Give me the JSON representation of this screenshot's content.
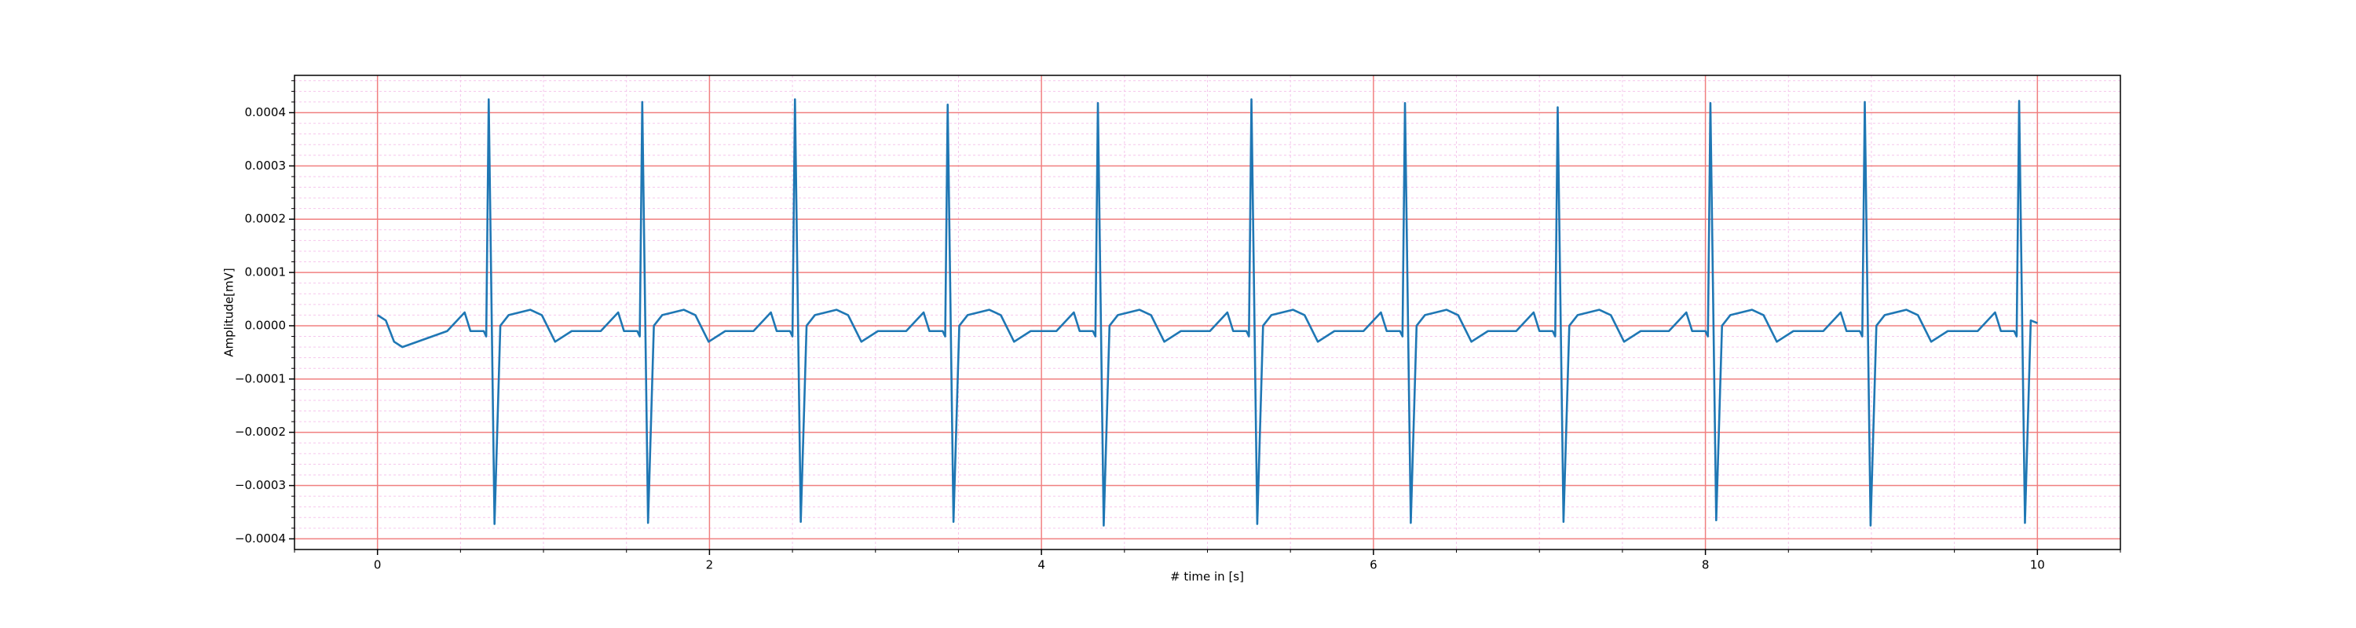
{
  "chart_data": {
    "type": "line",
    "xlabel": "# time in [s]",
    "ylabel": "Amplitude[mV]",
    "color": "#1f77b4",
    "grid": true,
    "xlim": [
      -0.5,
      10.5
    ],
    "ylim": [
      -0.00042,
      0.00047
    ],
    "xticks": [
      0,
      2,
      4,
      6,
      8,
      10
    ],
    "yticks": [
      {
        "value": -0.0004,
        "label": "−0.0004"
      },
      {
        "value": -0.0003,
        "label": "−0.0003"
      },
      {
        "value": -0.0002,
        "label": "−0.0002"
      },
      {
        "value": -0.0001,
        "label": "−0.0001"
      },
      {
        "value": 0,
        "label": "0.0000"
      },
      {
        "value": 0.0001,
        "label": "0.0001"
      },
      {
        "value": 0.0002,
        "label": "0.0002"
      },
      {
        "value": 0.0003,
        "label": "0.0003"
      },
      {
        "value": 0.0004,
        "label": "0.0004"
      }
    ],
    "xminorticks": [
      -0.5,
      0.5,
      1,
      1.5,
      2.5,
      3,
      3.5,
      4.5,
      5,
      5.5,
      6.5,
      7,
      7.5,
      8.5,
      9,
      9.5,
      10.5
    ],
    "yminorticks": [
      -0.00038,
      -0.00036,
      -0.00034,
      -0.00032,
      -0.00028,
      -0.00026,
      -0.00024,
      -0.00022,
      -0.00018,
      -0.00016,
      -0.00014,
      -0.00012,
      -8e-05,
      -6e-05,
      -4e-05,
      -2e-05,
      2e-05,
      4e-05,
      6e-05,
      8e-05,
      0.00012,
      0.00014,
      0.00016,
      0.00018,
      0.00022,
      0.00024,
      0.00026,
      0.00028,
      0.00032,
      0.00034,
      0.00036,
      0.00038,
      0.00042,
      0.00044,
      0.00046
    ],
    "x": [
      0,
      0.05,
      0.1,
      0.15,
      0.42,
      0.525,
      0.56,
      0.64,
      0.655,
      0.67,
      0.705,
      0.74,
      0.79,
      0.92,
      0.99,
      1.07,
      1.17,
      1.345,
      1.45,
      1.485,
      1.565,
      1.58,
      1.595,
      1.63,
      1.665,
      1.715,
      1.845,
      1.915,
      1.995,
      2.095,
      2.265,
      2.37,
      2.405,
      2.485,
      2.5,
      2.515,
      2.55,
      2.585,
      2.635,
      2.765,
      2.835,
      2.915,
      3.015,
      3.185,
      3.29,
      3.325,
      3.405,
      3.42,
      3.435,
      3.47,
      3.505,
      3.555,
      3.685,
      3.755,
      3.835,
      3.935,
      4.09,
      4.195,
      4.23,
      4.31,
      4.325,
      4.34,
      4.375,
      4.41,
      4.46,
      4.59,
      4.66,
      4.74,
      4.84,
      5.015,
      5.12,
      5.155,
      5.235,
      5.25,
      5.265,
      5.3,
      5.335,
      5.385,
      5.515,
      5.585,
      5.665,
      5.765,
      5.94,
      6.045,
      6.08,
      6.16,
      6.175,
      6.19,
      6.225,
      6.26,
      6.31,
      6.44,
      6.51,
      6.59,
      6.69,
      6.86,
      6.965,
      7.0,
      7.08,
      7.095,
      7.11,
      7.145,
      7.18,
      7.23,
      7.36,
      7.43,
      7.51,
      7.61,
      7.78,
      7.885,
      7.92,
      8.0,
      8.015,
      8.03,
      8.065,
      8.1,
      8.15,
      8.28,
      8.35,
      8.43,
      8.53,
      8.71,
      8.815,
      8.85,
      8.93,
      8.945,
      8.96,
      8.995,
      9.03,
      9.08,
      9.21,
      9.28,
      9.36,
      9.46,
      9.64,
      9.745,
      9.78,
      9.86,
      9.875,
      9.89,
      9.925,
      9.96,
      10.0
    ],
    "values": [
      2e-05,
      1e-05,
      -3e-05,
      -4e-05,
      -1e-05,
      2.5e-05,
      -1e-05,
      -1e-05,
      -2e-05,
      0.000425,
      -0.000372,
      0,
      2e-05,
      3e-05,
      2e-05,
      -3e-05,
      -1e-05,
      -1e-05,
      2.5e-05,
      -1e-05,
      -1e-05,
      -2e-05,
      0.00042,
      -0.00037,
      0,
      2e-05,
      3e-05,
      2e-05,
      -3e-05,
      -1e-05,
      -1e-05,
      2.5e-05,
      -1e-05,
      -1e-05,
      -2e-05,
      0.000425,
      -0.000368,
      0,
      2e-05,
      3e-05,
      2e-05,
      -3e-05,
      -1e-05,
      -1e-05,
      2.5e-05,
      -1e-05,
      -1e-05,
      -2e-05,
      0.000415,
      -0.000368,
      0,
      2e-05,
      3e-05,
      2e-05,
      -3e-05,
      -1e-05,
      -1e-05,
      2.5e-05,
      -1e-05,
      -1e-05,
      -2e-05,
      0.000418,
      -0.000375,
      0,
      2e-05,
      3e-05,
      2e-05,
      -3e-05,
      -1e-05,
      -1e-05,
      2.5e-05,
      -1e-05,
      -1e-05,
      -2e-05,
      0.000425,
      -0.000372,
      0,
      2e-05,
      3e-05,
      2e-05,
      -3e-05,
      -1e-05,
      -1e-05,
      2.5e-05,
      -1e-05,
      -1e-05,
      -2e-05,
      0.000418,
      -0.00037,
      0,
      2e-05,
      3e-05,
      2e-05,
      -3e-05,
      -1e-05,
      -1e-05,
      2.5e-05,
      -1e-05,
      -1e-05,
      -2e-05,
      0.00041,
      -0.000368,
      0,
      2e-05,
      3e-05,
      2e-05,
      -3e-05,
      -1e-05,
      -1e-05,
      2.5e-05,
      -1e-05,
      -1e-05,
      -2e-05,
      0.000418,
      -0.000365,
      0,
      2e-05,
      3e-05,
      2e-05,
      -3e-05,
      -1e-05,
      -1e-05,
      2.5e-05,
      -1e-05,
      -1e-05,
      -2e-05,
      0.00042,
      -0.000375,
      0,
      2e-05,
      3e-05,
      2e-05,
      -3e-05,
      -1e-05,
      -1e-05,
      2.5e-05,
      -1e-05,
      -1e-05,
      -2e-05,
      0.000422,
      -0.00037,
      1e-05,
      5e-06
    ]
  }
}
